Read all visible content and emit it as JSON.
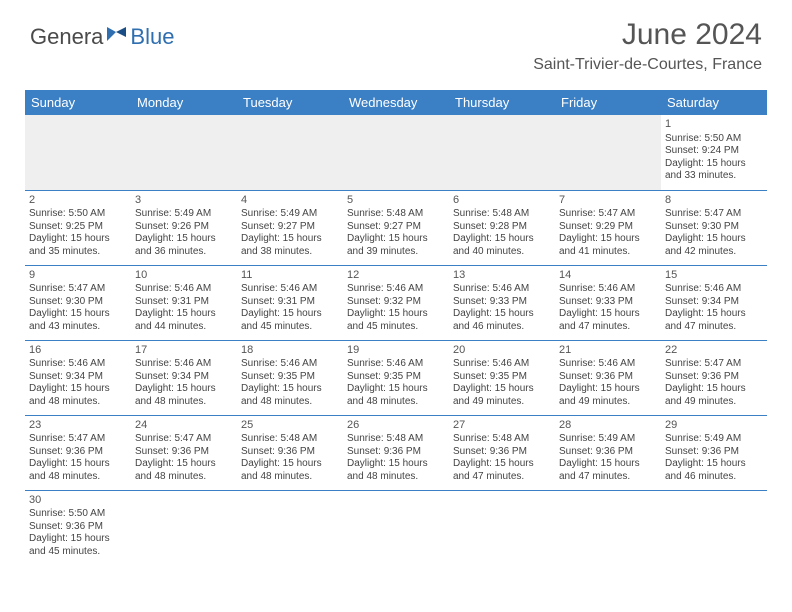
{
  "logo": {
    "part1": "Genera",
    "part2": "Blue"
  },
  "title": "June 2024",
  "location": "Saint-Trivier-de-Courtes, France",
  "colors": {
    "header_bg": "#3b7fc4",
    "header_text": "#ffffff",
    "border": "#3b7fc4",
    "blank_bg": "#efefef",
    "text": "#444444",
    "logo_gray": "#4a4a4a",
    "logo_blue": "#2f6fb0"
  },
  "dayHeaders": [
    "Sunday",
    "Monday",
    "Tuesday",
    "Wednesday",
    "Thursday",
    "Friday",
    "Saturday"
  ],
  "weeks": [
    [
      null,
      null,
      null,
      null,
      null,
      null,
      {
        "n": "1",
        "sr": "5:50 AM",
        "ss": "9:24 PM",
        "dl": "15 hours and 33 minutes."
      }
    ],
    [
      {
        "n": "2",
        "sr": "5:50 AM",
        "ss": "9:25 PM",
        "dl": "15 hours and 35 minutes."
      },
      {
        "n": "3",
        "sr": "5:49 AM",
        "ss": "9:26 PM",
        "dl": "15 hours and 36 minutes."
      },
      {
        "n": "4",
        "sr": "5:49 AM",
        "ss": "9:27 PM",
        "dl": "15 hours and 38 minutes."
      },
      {
        "n": "5",
        "sr": "5:48 AM",
        "ss": "9:27 PM",
        "dl": "15 hours and 39 minutes."
      },
      {
        "n": "6",
        "sr": "5:48 AM",
        "ss": "9:28 PM",
        "dl": "15 hours and 40 minutes."
      },
      {
        "n": "7",
        "sr": "5:47 AM",
        "ss": "9:29 PM",
        "dl": "15 hours and 41 minutes."
      },
      {
        "n": "8",
        "sr": "5:47 AM",
        "ss": "9:30 PM",
        "dl": "15 hours and 42 minutes."
      }
    ],
    [
      {
        "n": "9",
        "sr": "5:47 AM",
        "ss": "9:30 PM",
        "dl": "15 hours and 43 minutes."
      },
      {
        "n": "10",
        "sr": "5:46 AM",
        "ss": "9:31 PM",
        "dl": "15 hours and 44 minutes."
      },
      {
        "n": "11",
        "sr": "5:46 AM",
        "ss": "9:31 PM",
        "dl": "15 hours and 45 minutes."
      },
      {
        "n": "12",
        "sr": "5:46 AM",
        "ss": "9:32 PM",
        "dl": "15 hours and 45 minutes."
      },
      {
        "n": "13",
        "sr": "5:46 AM",
        "ss": "9:33 PM",
        "dl": "15 hours and 46 minutes."
      },
      {
        "n": "14",
        "sr": "5:46 AM",
        "ss": "9:33 PM",
        "dl": "15 hours and 47 minutes."
      },
      {
        "n": "15",
        "sr": "5:46 AM",
        "ss": "9:34 PM",
        "dl": "15 hours and 47 minutes."
      }
    ],
    [
      {
        "n": "16",
        "sr": "5:46 AM",
        "ss": "9:34 PM",
        "dl": "15 hours and 48 minutes."
      },
      {
        "n": "17",
        "sr": "5:46 AM",
        "ss": "9:34 PM",
        "dl": "15 hours and 48 minutes."
      },
      {
        "n": "18",
        "sr": "5:46 AM",
        "ss": "9:35 PM",
        "dl": "15 hours and 48 minutes."
      },
      {
        "n": "19",
        "sr": "5:46 AM",
        "ss": "9:35 PM",
        "dl": "15 hours and 48 minutes."
      },
      {
        "n": "20",
        "sr": "5:46 AM",
        "ss": "9:35 PM",
        "dl": "15 hours and 49 minutes."
      },
      {
        "n": "21",
        "sr": "5:46 AM",
        "ss": "9:36 PM",
        "dl": "15 hours and 49 minutes."
      },
      {
        "n": "22",
        "sr": "5:47 AM",
        "ss": "9:36 PM",
        "dl": "15 hours and 49 minutes."
      }
    ],
    [
      {
        "n": "23",
        "sr": "5:47 AM",
        "ss": "9:36 PM",
        "dl": "15 hours and 48 minutes."
      },
      {
        "n": "24",
        "sr": "5:47 AM",
        "ss": "9:36 PM",
        "dl": "15 hours and 48 minutes."
      },
      {
        "n": "25",
        "sr": "5:48 AM",
        "ss": "9:36 PM",
        "dl": "15 hours and 48 minutes."
      },
      {
        "n": "26",
        "sr": "5:48 AM",
        "ss": "9:36 PM",
        "dl": "15 hours and 48 minutes."
      },
      {
        "n": "27",
        "sr": "5:48 AM",
        "ss": "9:36 PM",
        "dl": "15 hours and 47 minutes."
      },
      {
        "n": "28",
        "sr": "5:49 AM",
        "ss": "9:36 PM",
        "dl": "15 hours and 47 minutes."
      },
      {
        "n": "29",
        "sr": "5:49 AM",
        "ss": "9:36 PM",
        "dl": "15 hours and 46 minutes."
      }
    ],
    [
      {
        "n": "30",
        "sr": "5:50 AM",
        "ss": "9:36 PM",
        "dl": "15 hours and 45 minutes."
      },
      null,
      null,
      null,
      null,
      null,
      null
    ]
  ],
  "labels": {
    "sunrise": "Sunrise:",
    "sunset": "Sunset:",
    "daylight": "Daylight:"
  }
}
